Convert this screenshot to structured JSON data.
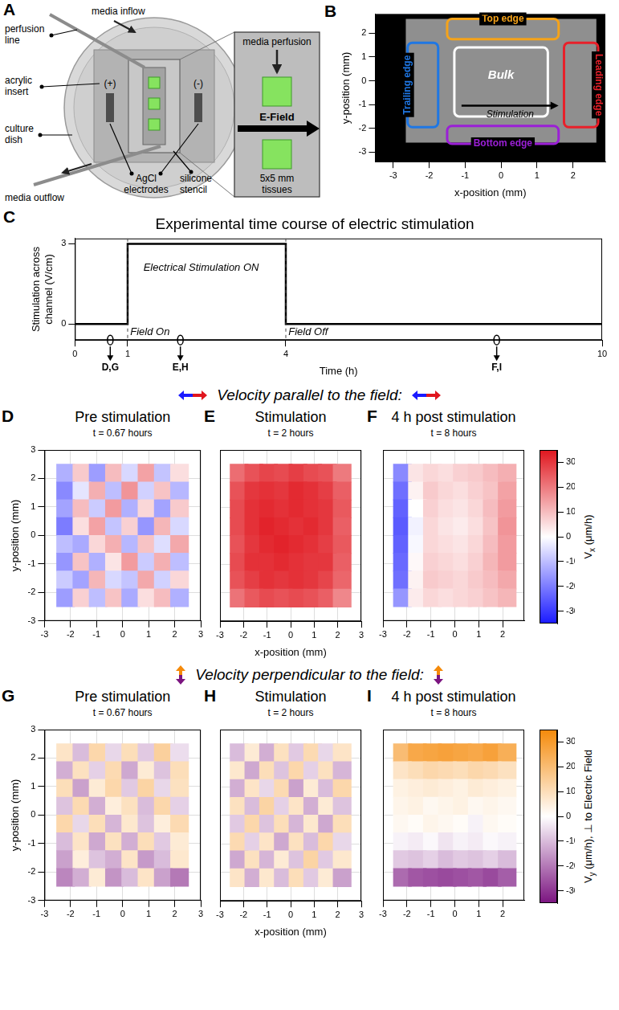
{
  "diagram": {
    "letter": "A",
    "labels": {
      "perfusion_line": "perfusion line",
      "media_inflow": "media inflow",
      "acrylic_insert": "acrylic insert",
      "culture_dish": "culture dish",
      "anode": "(+)",
      "cathode": "(-)",
      "electrodes": "AgCl electrodes",
      "media_outflow": "media outflow",
      "silicone_stencil": "silicone stencil",
      "media_perfusion": "media perfusion",
      "e_field": "E-Field",
      "tissues": "5x5 mm tissues"
    }
  },
  "chart_data": [
    {
      "type": "image",
      "letter": "B",
      "xlabel": "x-position (mm)",
      "ylabel": "y-position (mm)",
      "xlim": [
        -3.5,
        2.9
      ],
      "xticks": [
        -3,
        -2,
        -1,
        0,
        1,
        2
      ],
      "ylim": [
        -3.4,
        2.8
      ],
      "yticks": [
        -3,
        -2,
        -1,
        0,
        1,
        2
      ],
      "grid": false,
      "tissue": {
        "x": [
          -2.65,
          2.65
        ],
        "y": [
          -2.6,
          2.6
        ]
      },
      "regions": [
        {
          "label": "Top edge",
          "color": "#f5a31a",
          "x": [
            -1.5,
            1.6
          ],
          "y": [
            1.75,
            2.6
          ]
        },
        {
          "label": "Trailing edge",
          "color": "#1f77e4",
          "x": [
            -2.6,
            -1.75
          ],
          "y": [
            -1.95,
            1.6
          ]
        },
        {
          "label": "Leading edge",
          "color": "#e8202a",
          "x": [
            1.75,
            2.7
          ],
          "y": [
            -1.95,
            1.6
          ]
        },
        {
          "label": "Bottom edge",
          "color": "#9b1fd6",
          "x": [
            -1.5,
            1.6
          ],
          "y": [
            -2.65,
            -1.9
          ]
        },
        {
          "label": "Bulk",
          "color": "#ffffff",
          "x": [
            -1.3,
            1.3
          ],
          "y": [
            -1.5,
            1.4
          ]
        }
      ],
      "arrow": {
        "label": "Stimulation",
        "x": [
          -1.1,
          1.6
        ],
        "y": -1.05
      }
    },
    {
      "type": "line",
      "letter": "C",
      "title": "Experimental time course of electric stimulation",
      "xlabel": "Time (h)",
      "ylabel": "Stimulation across channel (V/cm)",
      "x": [
        0,
        1,
        1,
        4,
        4,
        10
      ],
      "values": [
        0,
        0,
        3,
        3,
        0,
        0
      ],
      "color": "#000000",
      "xlim": [
        0,
        10
      ],
      "xticks": [
        0,
        1,
        4,
        10
      ],
      "ylim": [
        -0.6,
        3.2
      ],
      "yticks": [
        0,
        3
      ],
      "grid": false,
      "annotations": [
        {
          "text": "Electrical Stimulation ON",
          "x": 1.3,
          "y": 2.1
        },
        {
          "text": "Field On",
          "x": 1.05,
          "y": -0.3
        },
        {
          "text": "Field Off",
          "x": 4.05,
          "y": -0.3
        }
      ],
      "markers": [
        {
          "x": 0.67,
          "label": "D,G"
        },
        {
          "x": 2,
          "label": "E,H"
        },
        {
          "x": 8,
          "label": "F,I"
        }
      ]
    }
  ],
  "heatmap_rows": [
    {
      "heading": "Velocity parallel to the field:",
      "color_scale": {
        "range": [
          -35,
          35
        ],
        "ticks": [
          -30,
          -20,
          -10,
          0,
          10,
          20,
          30
        ],
        "colors": [
          "#1a1aff",
          "#ffffff",
          "#e0161e"
        ],
        "label": {
          "symbol": "V",
          "subscript": "x",
          "text": " (μm/h)"
        }
      },
      "charts": [
        {
          "type": "heatmap",
          "letter": "D",
          "title": "Pre stimulation",
          "subtitle": "t = 0.67 hours",
          "ylabel": "y-position (mm)",
          "xlim": [
            -3,
            3
          ],
          "xticks": [
            -3,
            -2,
            -1,
            0,
            1,
            2,
            3
          ],
          "ylim": [
            -3,
            3
          ],
          "yticks": [
            -3,
            -2,
            -1,
            0,
            1,
            2,
            3
          ],
          "grid": true,
          "x": [
            -2.1875,
            -1.5625,
            -0.9375,
            -0.3125,
            0.3125,
            0.9375,
            1.5625,
            2.1875
          ],
          "y": [
            2.1875,
            1.5625,
            0.9375,
            0.3125,
            -0.3125,
            -0.9375,
            -1.5625,
            -2.1875
          ],
          "cells": [
            [
              -12,
              8,
              -15,
              10,
              -6,
              14,
              -9,
              5
            ],
            [
              -18,
              -4,
              12,
              -10,
              16,
              -7,
              9,
              -11
            ],
            [
              -14,
              10,
              -8,
              15,
              -12,
              6,
              -14,
              8
            ],
            [
              -20,
              5,
              14,
              -9,
              7,
              -16,
              11,
              -6
            ],
            [
              -10,
              -13,
              6,
              12,
              -11,
              9,
              -5,
              13
            ],
            [
              -16,
              9,
              -12,
              4,
              15,
              -8,
              12,
              -10
            ],
            [
              -8,
              -14,
              11,
              -6,
              -9,
              13,
              -7,
              6
            ],
            [
              -15,
              7,
              -10,
              9,
              -13,
              5,
              10,
              -12
            ]
          ]
        },
        {
          "type": "heatmap",
          "letter": "E",
          "title": "Stimulation",
          "subtitle": "t = 2 hours",
          "xlabel": "x-position (mm)",
          "tick_labels": "x",
          "xlim": [
            -3,
            3
          ],
          "xticks": [
            -3,
            -2,
            -1,
            0,
            1,
            2,
            3
          ],
          "ylim": [
            -3,
            3
          ],
          "yticks": [
            -3,
            -2,
            -1,
            0,
            1,
            2,
            3
          ],
          "grid": true,
          "x": [
            -2.1875,
            -1.5625,
            -0.9375,
            -0.3125,
            0.3125,
            0.9375,
            1.5625,
            2.1875
          ],
          "y": [
            2.1875,
            1.5625,
            0.9375,
            0.3125,
            -0.3125,
            -0.9375,
            -1.5625,
            -2.1875
          ],
          "cells": [
            [
              22,
              26,
              28,
              27,
              29,
              27,
              26,
              20
            ],
            [
              26,
              30,
              31,
              30,
              32,
              31,
              29,
              24
            ],
            [
              27,
              31,
              32,
              31,
              32,
              31,
              30,
              25
            ],
            [
              27,
              31,
              33,
              32,
              31,
              32,
              30,
              24
            ],
            [
              26,
              30,
              32,
              33,
              32,
              31,
              29,
              25
            ],
            [
              27,
              31,
              31,
              32,
              31,
              30,
              30,
              24
            ],
            [
              26,
              29,
              31,
              30,
              31,
              30,
              28,
              23
            ],
            [
              21,
              25,
              27,
              26,
              27,
              26,
              24,
              18
            ]
          ]
        },
        {
          "type": "heatmap",
          "letter": "F",
          "title": "4 h post stimulation",
          "subtitle": "t = 8 hours",
          "tick_labels": "x",
          "xlim": [
            -3,
            2.9
          ],
          "xticks": [
            -3,
            -2,
            -1,
            0,
            1,
            2
          ],
          "ylim": [
            -3,
            3
          ],
          "yticks": [
            -3,
            -2,
            -1,
            0,
            1,
            2,
            3
          ],
          "grid": true,
          "x": [
            -2.1875,
            -1.5625,
            -0.9375,
            -0.3125,
            0.3125,
            0.9375,
            1.5625,
            2.1875
          ],
          "y": [
            2.1875,
            1.5625,
            0.9375,
            0.3125,
            -0.3125,
            -0.9375,
            -1.5625,
            -2.1875
          ],
          "cells": [
            [
              -18,
              4,
              6,
              5,
              7,
              8,
              10,
              12
            ],
            [
              -22,
              2,
              8,
              6,
              5,
              7,
              9,
              14
            ],
            [
              -24,
              0,
              7,
              5,
              4,
              6,
              10,
              15
            ],
            [
              -25,
              -2,
              6,
              4,
              3,
              5,
              9,
              16
            ],
            [
              -24,
              -1,
              6,
              5,
              4,
              6,
              10,
              15
            ],
            [
              -23,
              1,
              7,
              6,
              5,
              7,
              11,
              15
            ],
            [
              -22,
              2,
              8,
              7,
              6,
              8,
              10,
              13
            ],
            [
              -16,
              3,
              6,
              5,
              6,
              7,
              9,
              11
            ]
          ]
        }
      ]
    },
    {
      "heading": "Velocity perpendicular to the field:",
      "color_scale": {
        "range": [
          -35,
          35
        ],
        "ticks": [
          -30,
          -20,
          -10,
          0,
          10,
          20,
          30
        ],
        "colors": [
          "#7b1480",
          "#ffffff",
          "#f58a0a"
        ],
        "label": {
          "symbol": "V",
          "subscript": "y",
          "text": " (μm/h), ⊥ to Electric Field"
        }
      },
      "charts": [
        {
          "type": "heatmap",
          "letter": "G",
          "title": "Pre stimulation",
          "subtitle": "t = 0.67 hours",
          "ylabel": "y-position (mm)",
          "xlim": [
            -3,
            3
          ],
          "xticks": [
            -3,
            -2,
            -1,
            0,
            1,
            2,
            3
          ],
          "ylim": [
            -3,
            3
          ],
          "yticks": [
            -3,
            -2,
            -1,
            0,
            1,
            2,
            3
          ],
          "grid": true,
          "x": [
            -2.1875,
            -1.5625,
            -0.9375,
            -0.3125,
            0.3125,
            0.9375,
            1.5625,
            2.1875
          ],
          "y": [
            2.1875,
            1.5625,
            0.9375,
            0.3125,
            -0.3125,
            -0.9375,
            -1.5625,
            -2.1875
          ],
          "cells": [
            [
              8,
              -10,
              12,
              -6,
              10,
              -8,
              14,
              -5
            ],
            [
              -12,
              9,
              -7,
              11,
              -13,
              6,
              -9,
              10
            ],
            [
              10,
              -14,
              6,
              12,
              -8,
              13,
              -6,
              9
            ],
            [
              -9,
              11,
              -12,
              5,
              9,
              -10,
              12,
              -7
            ],
            [
              12,
              -6,
              10,
              -11,
              7,
              -9,
              5,
              11
            ],
            [
              -10,
              8,
              -13,
              9,
              -12,
              10,
              -8,
              6
            ],
            [
              -14,
              5,
              -9,
              -12,
              8,
              -15,
              -10,
              7
            ],
            [
              -18,
              -12,
              6,
              -16,
              -10,
              8,
              -14,
              -20
            ]
          ]
        },
        {
          "type": "heatmap",
          "letter": "H",
          "title": "Stimulation",
          "subtitle": "t = 2 hours",
          "xlabel": "x-position (mm)",
          "tick_labels": "x",
          "xlim": [
            -3,
            3
          ],
          "xticks": [
            -3,
            -2,
            -1,
            0,
            1,
            2,
            3
          ],
          "ylim": [
            -3,
            3
          ],
          "yticks": [
            -3,
            -2,
            -1,
            0,
            1,
            2,
            3
          ],
          "grid": true,
          "x": [
            -2.1875,
            -1.5625,
            -0.9375,
            -0.3125,
            0.3125,
            0.9375,
            1.5625,
            2.1875
          ],
          "y": [
            2.1875,
            1.5625,
            0.9375,
            0.3125,
            -0.3125,
            -0.9375,
            -1.5625,
            -2.1875
          ],
          "cells": [
            [
              -10,
              6,
              -12,
              9,
              -8,
              11,
              -6,
              8
            ],
            [
              7,
              -13,
              10,
              -9,
              12,
              -7,
              9,
              -11
            ],
            [
              -12,
              8,
              -6,
              11,
              -14,
              6,
              -10,
              12
            ],
            [
              9,
              -10,
              13,
              -7,
              8,
              -12,
              6,
              -9
            ],
            [
              -8,
              12,
              -9,
              10,
              -11,
              7,
              -13,
              10
            ],
            [
              11,
              -7,
              8,
              -13,
              9,
              -10,
              12,
              -6
            ],
            [
              -13,
              9,
              -11,
              6,
              -9,
              13,
              -8,
              7
            ],
            [
              8,
              -12,
              7,
              -10,
              10,
              -8,
              6,
              -14
            ]
          ]
        },
        {
          "type": "heatmap",
          "letter": "I",
          "title": "4 h post stimulation",
          "subtitle": "t = 8 hours",
          "tick_labels": "x",
          "xlim": [
            -3,
            2.9
          ],
          "xticks": [
            -3,
            -2,
            -1,
            0,
            1,
            2
          ],
          "ylim": [
            -3,
            3
          ],
          "yticks": [
            -3,
            -2,
            -1,
            0,
            1,
            2,
            3
          ],
          "grid": true,
          "x": [
            -2.1875,
            -1.5625,
            -0.9375,
            -0.3125,
            0.3125,
            0.9375,
            1.5625,
            2.1875
          ],
          "y": [
            2.1875,
            1.5625,
            0.9375,
            0.3125,
            -0.3125,
            -0.9375,
            -1.5625,
            -2.1875
          ],
          "cells": [
            [
              20,
              26,
              27,
              28,
              27,
              26,
              28,
              24
            ],
            [
              8,
              10,
              12,
              11,
              10,
              12,
              11,
              9
            ],
            [
              4,
              5,
              6,
              5,
              4,
              6,
              5,
              4
            ],
            [
              3,
              4,
              2,
              3,
              4,
              2,
              3,
              2
            ],
            [
              2,
              1,
              3,
              2,
              1,
              -2,
              2,
              1
            ],
            [
              -2,
              -3,
              -1,
              -4,
              -2,
              -3,
              -1,
              -2
            ],
            [
              -8,
              -9,
              -7,
              -10,
              -8,
              -9,
              -7,
              -10
            ],
            [
              -22,
              -25,
              -26,
              -27,
              -26,
              -25,
              -27,
              -24
            ]
          ]
        }
      ]
    }
  ]
}
